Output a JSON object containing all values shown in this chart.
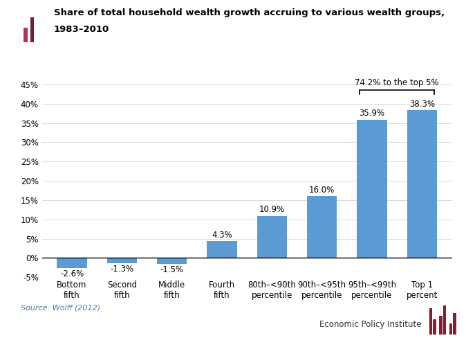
{
  "categories": [
    "Bottom\nfifth",
    "Second\nfifth",
    "Middle\nfifth",
    "Fourth\nfifth",
    "80th–<90th\npercentile",
    "90th–<95th\npercentile",
    "95th–<99th\npercentile",
    "Top 1\npercent"
  ],
  "values": [
    -2.6,
    -1.3,
    -1.5,
    4.3,
    10.9,
    16.0,
    35.9,
    38.3
  ],
  "bar_color": "#5b9bd5",
  "title_line1": "Share of total household wealth growth accruing to various wealth groups,",
  "title_line2": "1983–2010",
  "source_text": "Source: Wolff (2012)",
  "epi_text": "Economic Policy Institute",
  "annotation_text": "74.2% to the top 5%",
  "ylim": [
    -0.05,
    0.45
  ],
  "yticks": [
    -0.05,
    0.0,
    0.05,
    0.1,
    0.15,
    0.2,
    0.25,
    0.3,
    0.35,
    0.4,
    0.45
  ],
  "ytick_labels": [
    "-5%",
    "0%",
    "5%",
    "10%",
    "15%",
    "20%",
    "25%",
    "30%",
    "35%",
    "40%",
    "45%"
  ],
  "bar_width": 0.6,
  "background_color": "#ffffff",
  "icon_red": "#b03060",
  "icon_dark": "#7b1a2e",
  "epi_logo_color": "#8b1a2e"
}
